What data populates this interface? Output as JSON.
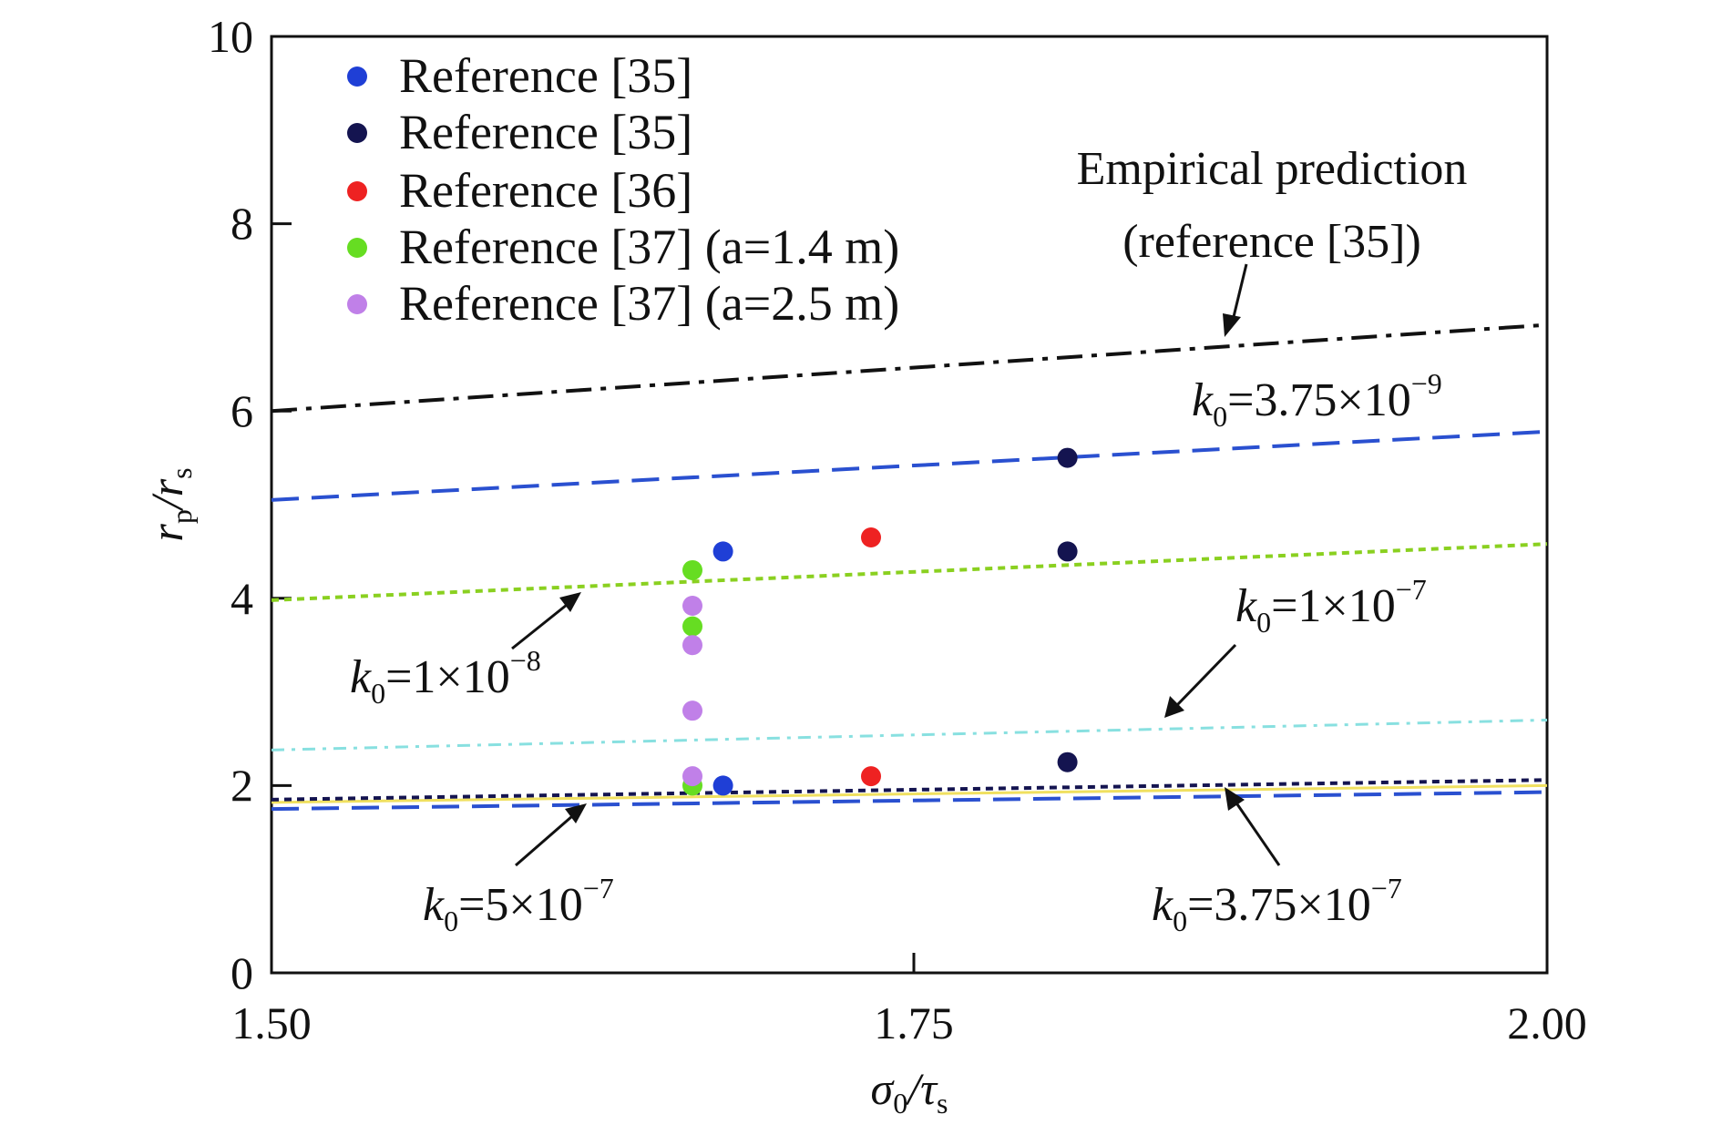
{
  "chart_data": {
    "type": "scatter",
    "xlabel": {
      "main": "σ",
      "sub1": "0",
      "sep": "/τ",
      "sub2": "s"
    },
    "ylabel": {
      "main": "r",
      "sub1": "p",
      "sep": "/r",
      "sub2": "s"
    },
    "xlim": [
      1.5,
      2.0
    ],
    "ylim": [
      0,
      10
    ],
    "x_ticks": [
      "1.50",
      "1.75",
      "2.00"
    ],
    "y_ticks": [
      "0",
      "2",
      "4",
      "6",
      "8",
      "10"
    ],
    "grid": false,
    "legend_position": "top-left",
    "scatter_series": [
      {
        "name": "Reference [35]",
        "color": "#1f3fd6",
        "points": [
          [
            1.677,
            4.5
          ],
          [
            1.677,
            2.0
          ]
        ]
      },
      {
        "name": "Reference [35]",
        "color": "#141450",
        "points": [
          [
            1.812,
            5.5
          ],
          [
            1.812,
            4.5
          ],
          [
            1.812,
            2.25
          ]
        ]
      },
      {
        "name": "Reference [36]",
        "color": "#ee2222",
        "points": [
          [
            1.735,
            4.65
          ],
          [
            1.735,
            2.1
          ]
        ]
      },
      {
        "name": "Reference [37] (a=1.4 m)",
        "color": "#66dd22",
        "points": [
          [
            1.665,
            4.3
          ],
          [
            1.665,
            3.7
          ],
          [
            1.665,
            2.0
          ]
        ]
      },
      {
        "name": "Reference [37] (a=2.5 m)",
        "color": "#c080e8",
        "points": [
          [
            1.665,
            3.92
          ],
          [
            1.665,
            3.5
          ],
          [
            1.665,
            2.8
          ],
          [
            1.665,
            2.1
          ]
        ]
      }
    ],
    "line_series": [
      {
        "id": "empirical",
        "color": "#111111",
        "dash": "28 10 6 10",
        "width": 4,
        "points": [
          [
            1.5,
            6.0
          ],
          [
            2.0,
            6.92
          ]
        ]
      },
      {
        "id": "k0-3.75e-9",
        "color": "#2a50d0",
        "dash": "30 14",
        "width": 4,
        "points": [
          [
            1.5,
            5.05
          ],
          [
            2.0,
            5.78
          ]
        ]
      },
      {
        "id": "k0-1e-8",
        "color": "#8ad020",
        "dash": "8 6",
        "width": 4,
        "points": [
          [
            1.5,
            3.98
          ],
          [
            2.0,
            4.58
          ]
        ]
      },
      {
        "id": "k0-1e-7",
        "color": "#88e0e0",
        "dash": "14 8 4 8",
        "width": 3,
        "points": [
          [
            1.5,
            2.38
          ],
          [
            2.0,
            2.7
          ]
        ]
      },
      {
        "id": "k0-5e-7",
        "color": "#f0e060",
        "dash": "",
        "width": 3,
        "points": [
          [
            1.5,
            1.82
          ],
          [
            2.0,
            2.0
          ]
        ]
      },
      {
        "id": "k0-5e-7-dark",
        "color": "#141450",
        "dash": "8 6",
        "width": 4,
        "points": [
          [
            1.5,
            1.85
          ],
          [
            2.0,
            2.06
          ]
        ]
      },
      {
        "id": "k0-3.75e-7",
        "color": "#2a50d0",
        "dash": "30 14",
        "width": 4,
        "points": [
          [
            1.5,
            1.75
          ],
          [
            2.0,
            1.93
          ]
        ]
      }
    ],
    "annotations": [
      {
        "id": "empirical",
        "line1": "Empirical prediction",
        "line2": "(reference [35])"
      },
      {
        "id": "k0-3.75e-9",
        "main": "k",
        "sub": "0",
        "rest": "=3.75×10",
        "exp": "−9"
      },
      {
        "id": "k0-1e-8",
        "main": "k",
        "sub": "0",
        "rest": "=1×10",
        "exp": "−8"
      },
      {
        "id": "k0-1e-7",
        "main": "k",
        "sub": "0",
        "rest": "=1×10",
        "exp": "−7"
      },
      {
        "id": "k0-5e-7",
        "main": "k",
        "sub": "0",
        "rest": "=5×10",
        "exp": "−7"
      },
      {
        "id": "k0-3.75e-7",
        "main": "k",
        "sub": "0",
        "rest": "=3.75×10",
        "exp": "−7"
      }
    ]
  }
}
